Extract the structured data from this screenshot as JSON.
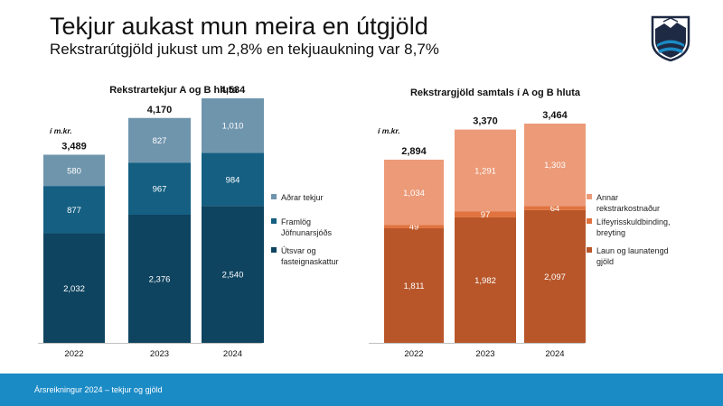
{
  "page": {
    "title": "Tekjur aukast mun meira en útgjöld",
    "subtitle": "Rekstrarútgjöld jukust um 2,8% en tekjuaukning var 8,7%",
    "footer": "Ársreikningur 2024 – tekjur og gjöld",
    "logo_icon": "municipal-crest-icon"
  },
  "chart_data": [
    {
      "type": "bar",
      "stacked": true,
      "title": "Rekstrartekjur A og B hluta",
      "unit_label": "í m.kr.",
      "categories": [
        "2022",
        "2023",
        "2024"
      ],
      "series": [
        {
          "name": "Útsvar og fasteignaskattur",
          "values": [
            2032,
            2376,
            2540
          ],
          "labels": [
            "2,032",
            "2,376",
            "2,540"
          ],
          "color": "#0e4460",
          "label_color": "#ffffff"
        },
        {
          "name": "Framlög Jöfnunarsjóðs",
          "values": [
            877,
            967,
            984
          ],
          "labels": [
            "877",
            "967",
            "984"
          ],
          "color": "#145f82",
          "label_color": "#ffffff"
        },
        {
          "name": "Aðrar tekjur",
          "values": [
            580,
            827,
            1010
          ],
          "labels": [
            "580",
            "827",
            "1,010"
          ],
          "color": "#6f95ad",
          "label_color": "#ffffff"
        }
      ],
      "totals": [
        3489,
        4170,
        4534
      ],
      "total_labels": [
        "3,489",
        "4,170",
        "4,534"
      ],
      "legend": [
        {
          "lines": [
            "Aðrar tekjur"
          ],
          "color": "#6f95ad"
        },
        {
          "lines": [
            "Framlög",
            "Jöfnunarsjóðs"
          ],
          "color": "#145f82"
        },
        {
          "lines": [
            "Útsvar og",
            "fasteignaskattur"
          ],
          "color": "#0e4460"
        }
      ],
      "legend_position": "right",
      "ylim": [
        0,
        4800
      ]
    },
    {
      "type": "bar",
      "stacked": true,
      "title": "Rekstrargjöld samtals í A og B hluta",
      "unit_label": "í m.kr.",
      "categories": [
        "2022",
        "2023",
        "2024"
      ],
      "series": [
        {
          "name": "Laun og launatengd gjöld",
          "values": [
            1811,
            1982,
            2097
          ],
          "labels": [
            "1,811",
            "1,982",
            "2,097"
          ],
          "color": "#b8562a",
          "label_color": "#ffffff"
        },
        {
          "name": "Lífeyrisskuldbinding, breyting",
          "values": [
            49,
            97,
            64
          ],
          "labels": [
            "49",
            "97",
            "64"
          ],
          "color": "#e0733f",
          "label_color": "#ffffff"
        },
        {
          "name": "Annar rekstrarkostnaður",
          "values": [
            1034,
            1291,
            1303
          ],
          "labels": [
            "1,034",
            "1,291",
            "1,303"
          ],
          "color": "#ec9a78",
          "label_color": "#ffffff"
        }
      ],
      "totals": [
        2894,
        3370,
        3464
      ],
      "total_labels": [
        "2,894",
        "3,370",
        "3,464"
      ],
      "legend": [
        {
          "lines": [
            "Annar",
            "rekstrarkostnaður"
          ],
          "color": "#ec9a78"
        },
        {
          "lines": [
            "Lífeyrisskuldbinding,",
            "breyting"
          ],
          "color": "#e0733f"
        },
        {
          "lines": [
            "Laun og launatengd",
            "gjöld"
          ],
          "color": "#b8562a"
        }
      ],
      "legend_position": "right",
      "ylim": [
        0,
        3500
      ]
    }
  ]
}
